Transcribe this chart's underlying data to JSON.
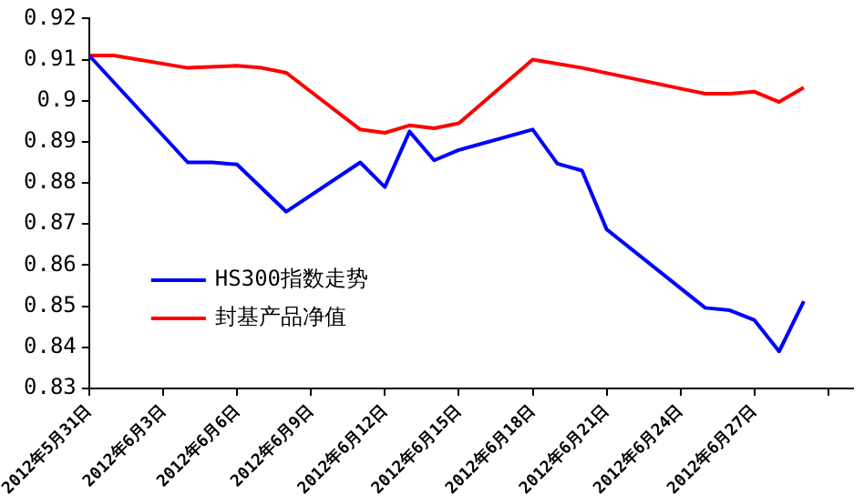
{
  "chart_data": {
    "type": "line",
    "xlim": [
      "2012-05-31",
      "2012-07-01"
    ],
    "xticks": [
      {
        "value": "2012-05-31",
        "label": "2012年5月31日"
      },
      {
        "value": "2012-06-03",
        "label": "2012年6月3日"
      },
      {
        "value": "2012-06-06",
        "label": "2012年6月6日"
      },
      {
        "value": "2012-06-09",
        "label": "2012年6月9日"
      },
      {
        "value": "2012-06-12",
        "label": "2012年6月12日"
      },
      {
        "value": "2012-06-15",
        "label": "2012年6月15日"
      },
      {
        "value": "2012-06-18",
        "label": "2012年6月18日"
      },
      {
        "value": "2012-06-21",
        "label": "2012年6月21日"
      },
      {
        "value": "2012-06-24",
        "label": "2012年6月24日"
      },
      {
        "value": "2012-06-27",
        "label": "2012年6月27日"
      },
      {
        "value": "2012-06-30",
        "label": null
      }
    ],
    "ylim": [
      0.83,
      0.92
    ],
    "yticks": [
      0.83,
      0.84,
      0.85,
      0.86,
      0.87,
      0.88,
      0.89,
      0.9,
      0.91,
      0.92
    ],
    "grid": false,
    "legend": "bottom left",
    "marker": "none",
    "line_style": "solid",
    "series": [
      {
        "name": "HS300指数走势",
        "color": "#0000ff",
        "x": [
          "2012-05-31",
          "2012-06-04",
          "2012-06-05",
          "2012-06-06",
          "2012-06-08",
          "2012-06-11",
          "2012-06-12",
          "2012-06-13",
          "2012-06-14",
          "2012-06-15",
          "2012-06-18",
          "2012-06-19",
          "2012-06-20",
          "2012-06-21",
          "2012-06-25",
          "2012-06-26",
          "2012-06-27",
          "2012-06-28",
          "2012-06-29"
        ],
        "values": [
          0.911,
          0.885,
          0.885,
          0.8845,
          0.873,
          0.885,
          0.879,
          0.8925,
          0.8855,
          0.888,
          0.893,
          0.8847,
          0.883,
          0.8687,
          0.8496,
          0.849,
          0.8466,
          0.839,
          0.8512
        ]
      },
      {
        "name": "封基产品净值",
        "color": "#ff0000",
        "x": [
          "2012-05-31",
          "2012-06-01",
          "2012-06-04",
          "2012-06-06",
          "2012-06-07",
          "2012-06-08",
          "2012-06-11",
          "2012-06-12",
          "2012-06-13",
          "2012-06-14",
          "2012-06-15",
          "2012-06-18",
          "2012-06-20",
          "2012-06-25",
          "2012-06-26",
          "2012-06-27",
          "2012-06-28",
          "2012-06-29"
        ],
        "values": [
          0.911,
          0.911,
          0.908,
          0.9085,
          0.908,
          0.9068,
          0.893,
          0.8922,
          0.894,
          0.8933,
          0.8945,
          0.91,
          0.908,
          0.9017,
          0.9017,
          0.9022,
          0.8997,
          0.9032
        ]
      }
    ]
  }
}
